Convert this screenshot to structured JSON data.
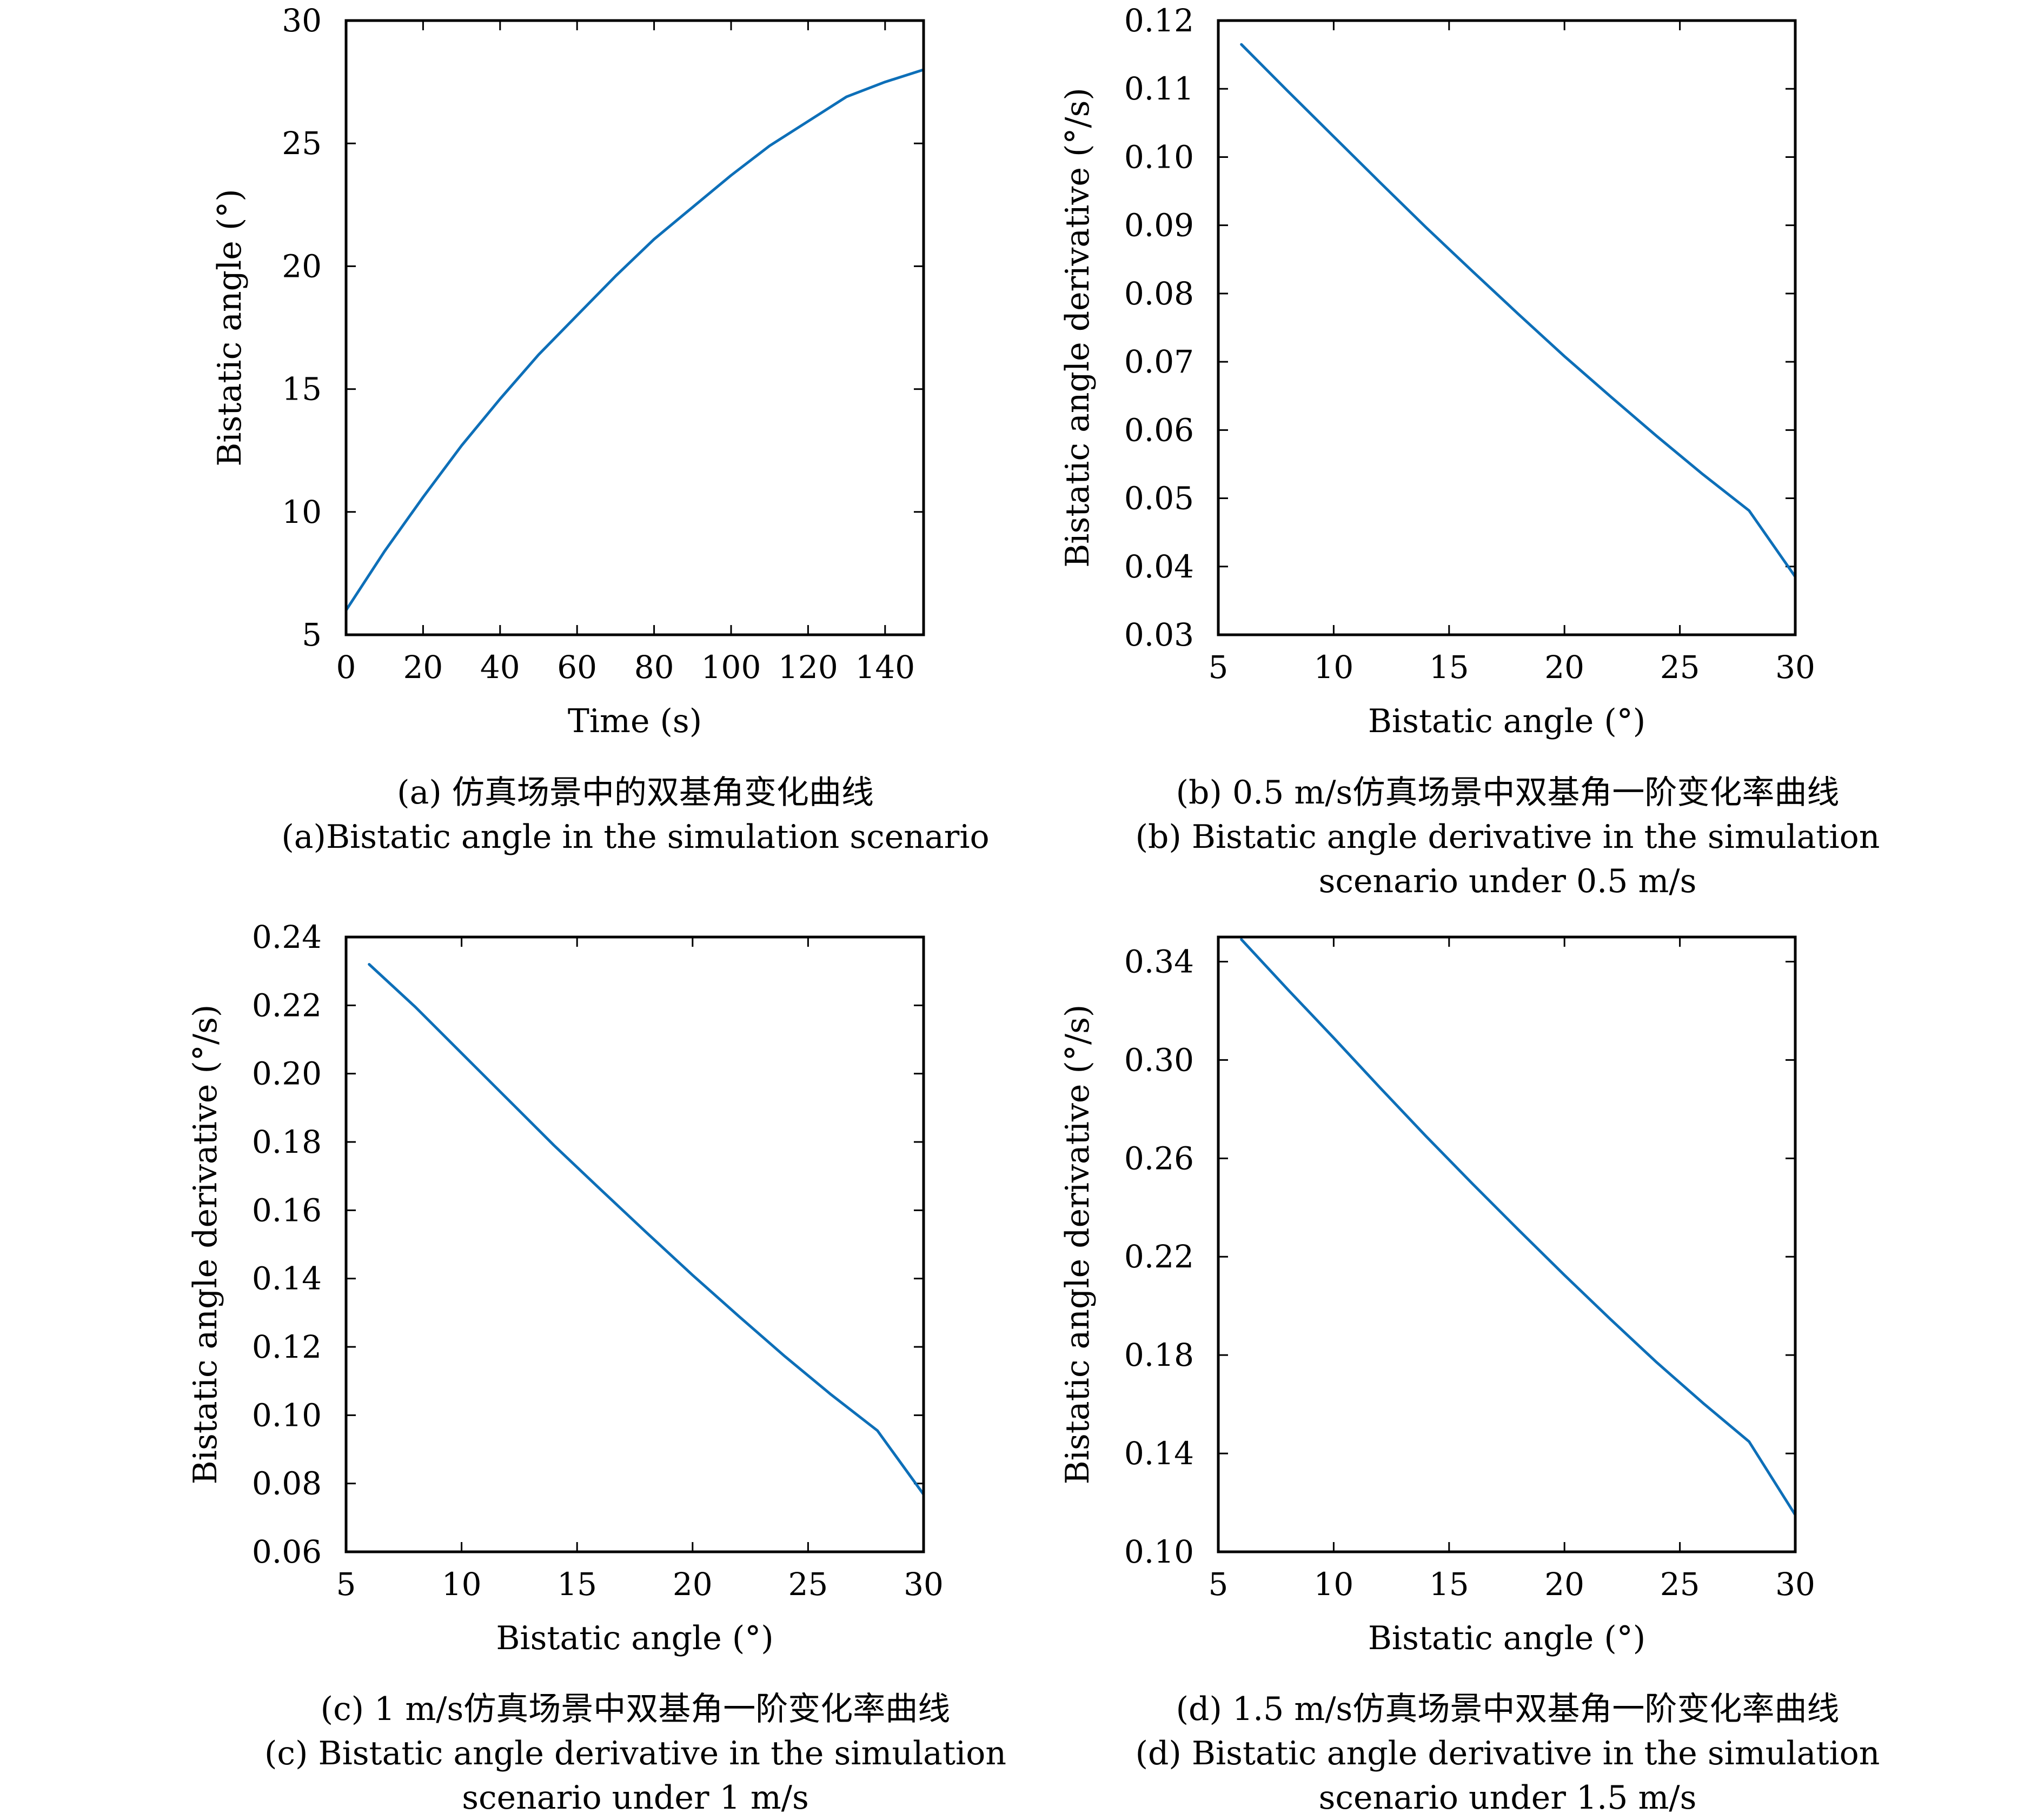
{
  "line_color": "#0d6fb8",
  "captions": [
    {
      "cn": "(a) 仿真场景中的双基角变化曲线",
      "en1": "(a)Bistatic angle in the simulation scenario",
      "en2": ""
    },
    {
      "cn": "(b) 0.5 m/s仿真场景中双基角一阶变化率曲线",
      "en1": "(b) Bistatic angle derivative in the simulation",
      "en2": "scenario under 0.5 m/s"
    },
    {
      "cn": "(c) 1 m/s仿真场景中双基角一阶变化率曲线",
      "en1": "(c) Bistatic angle derivative in the simulation",
      "en2": "scenario under 1 m/s"
    },
    {
      "cn": "(d) 1.5 m/s仿真场景中双基角一阶变化率曲线",
      "en1": "(d) Bistatic angle derivative in the simulation",
      "en2": "scenario under 1.5 m/s"
    }
  ],
  "chart_data": [
    {
      "type": "line",
      "xlabel": "Time (s)",
      "ylabel": "Bistatic angle (°)",
      "xlim": [
        0,
        150
      ],
      "ylim": [
        5,
        30
      ],
      "xticks": [
        0,
        20,
        40,
        60,
        80,
        100,
        120,
        140
      ],
      "xtick_labels": [
        "0",
        "20",
        "40",
        "60",
        "80",
        "100",
        "120",
        "140"
      ],
      "yticks": [
        5,
        10,
        15,
        20,
        25,
        30
      ],
      "ytick_labels": [
        "5",
        "10",
        "15",
        "20",
        "25",
        "30"
      ],
      "grid": false,
      "series": [
        {
          "x": [
            0,
            10,
            20,
            30,
            40,
            50,
            60,
            70,
            80,
            90,
            100,
            110,
            120,
            130,
            140,
            150
          ],
          "y": [
            6.0,
            8.4,
            10.6,
            12.7,
            14.6,
            16.4,
            18.0,
            19.6,
            21.1,
            22.4,
            23.7,
            24.9,
            25.9,
            26.9,
            27.5,
            28.0
          ]
        }
      ]
    },
    {
      "type": "line",
      "xlabel": "Bistatic angle (°)",
      "ylabel": "Bistatic angle derivative (°/s)",
      "xlim": [
        5,
        30
      ],
      "ylim": [
        0.03,
        0.12
      ],
      "xticks": [
        5,
        10,
        15,
        20,
        25,
        30
      ],
      "xtick_labels": [
        "5",
        "10",
        "15",
        "20",
        "25",
        "30"
      ],
      "yticks": [
        0.03,
        0.04,
        0.05,
        0.06,
        0.07,
        0.08,
        0.09,
        0.1,
        0.11,
        0.12
      ],
      "ytick_labels": [
        "0.03",
        "0.04",
        "0.05",
        "0.06",
        "0.07",
        "0.08",
        "0.09",
        "0.10",
        "0.11",
        "0.12"
      ],
      "grid": false,
      "series": [
        {
          "x": [
            6,
            8,
            10,
            12,
            14,
            16,
            18,
            20,
            22,
            24,
            26,
            28,
            30
          ],
          "y": [
            0.1165,
            0.1097,
            0.103,
            0.0963,
            0.0897,
            0.0833,
            0.077,
            0.0708,
            0.0649,
            0.0591,
            0.0535,
            0.0482,
            0.0385
          ]
        }
      ]
    },
    {
      "type": "line",
      "xlabel": "Bistatic angle (°)",
      "ylabel": "Bistatic angle derivative (°/s)",
      "xlim": [
        5,
        30
      ],
      "ylim": [
        0.06,
        0.24
      ],
      "xticks": [
        5,
        10,
        15,
        20,
        25,
        30
      ],
      "xtick_labels": [
        "5",
        "10",
        "15",
        "20",
        "25",
        "30"
      ],
      "yticks": [
        0.06,
        0.08,
        0.1,
        0.12,
        0.14,
        0.16,
        0.18,
        0.2,
        0.22,
        0.24
      ],
      "ytick_labels": [
        "0.06",
        "0.08",
        "0.10",
        "0.12",
        "0.14",
        "0.16",
        "0.18",
        "0.20",
        "0.22",
        "0.24"
      ],
      "grid": false,
      "series": [
        {
          "x": [
            6,
            8,
            10,
            12,
            14,
            16,
            18,
            20,
            22,
            24,
            26,
            28,
            30
          ],
          "y": [
            0.232,
            0.2195,
            0.206,
            0.1925,
            0.179,
            0.1662,
            0.1535,
            0.141,
            0.129,
            0.1172,
            0.106,
            0.0955,
            0.0768
          ]
        }
      ]
    },
    {
      "type": "line",
      "xlabel": "Bistatic angle (°)",
      "ylabel": "Bistatic angle derivative (°/s)",
      "xlim": [
        5,
        30
      ],
      "ylim": [
        0.1,
        0.35
      ],
      "xticks": [
        5,
        10,
        15,
        20,
        25,
        30
      ],
      "xtick_labels": [
        "5",
        "10",
        "15",
        "20",
        "25",
        "30"
      ],
      "yticks": [
        0.1,
        0.14,
        0.18,
        0.22,
        0.26,
        0.3,
        0.34
      ],
      "ytick_labels": [
        "0.10",
        "0.14",
        "0.18",
        "0.22",
        "0.26",
        "0.30",
        "0.34"
      ],
      "grid": false,
      "series": [
        {
          "x": [
            6,
            8,
            10,
            12,
            14,
            16,
            18,
            20,
            22,
            24,
            26,
            28,
            30
          ],
          "y": [
            0.349,
            0.3288,
            0.309,
            0.2888,
            0.269,
            0.2498,
            0.231,
            0.2125,
            0.1945,
            0.177,
            0.1605,
            0.1448,
            0.115
          ]
        }
      ]
    }
  ]
}
